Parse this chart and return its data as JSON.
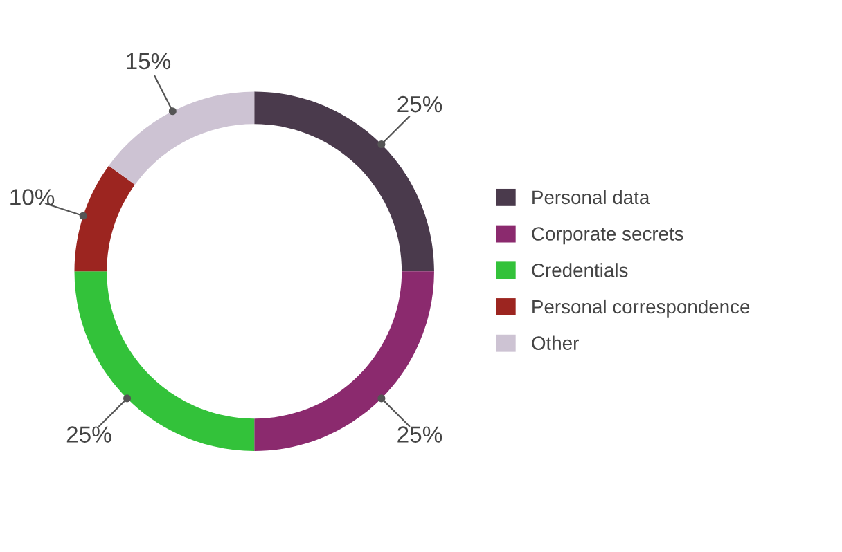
{
  "chart_data": {
    "type": "donut",
    "categories": [
      "Personal data",
      "Corporate secrets",
      "Credentials",
      "Personal correspondence",
      "Other"
    ],
    "values": [
      25,
      25,
      25,
      10,
      15
    ],
    "value_labels": [
      "25%",
      "25%",
      "25%",
      "10%",
      "15%"
    ],
    "colors": [
      "#4a3a4c",
      "#8b2a6e",
      "#33c23a",
      "#9c2520",
      "#cdc3d3"
    ],
    "legend": "right"
  }
}
